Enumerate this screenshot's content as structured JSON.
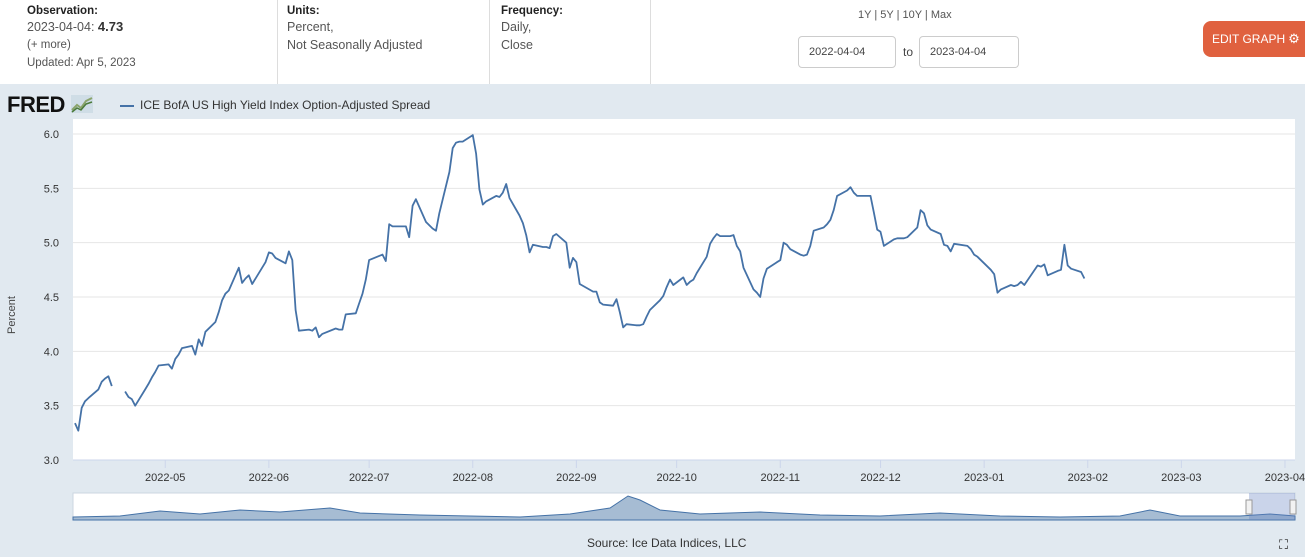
{
  "header": {
    "observation_label": "Observation:",
    "observation_date": "2023-04-04:",
    "observation_value": "4.73",
    "more_label": "(+ more)",
    "updated": "Updated: Apr 5, 2023",
    "units_label": "Units:",
    "units_line1": "Percent,",
    "units_line2": "Not Seasonally Adjusted",
    "frequency_label": "Frequency:",
    "frequency_line1": "Daily,",
    "frequency_line2": "Close",
    "ranges": [
      "1Y",
      "5Y",
      "10Y",
      "Max"
    ],
    "range_sep": " | ",
    "date_from": "2022-04-04",
    "date_to": "2023-04-04",
    "to_label": "to",
    "edit_button": "EDIT GRAPH",
    "gear_icon": "gear-icon"
  },
  "logo": {
    "text": "FRED",
    "icon": "chart-trend-icon"
  },
  "footer": {
    "source": "Source: Ice Data Indices, LLC",
    "fullscreen_icon": "fullscreen-icon"
  },
  "colors": {
    "line": "#4572a7",
    "accent": "#e0613f",
    "plot_bg": "#ffffff",
    "page_bg": "#e1e9f0"
  },
  "chart_data": {
    "type": "line",
    "ylabel": "Percent",
    "ylim": [
      3.0,
      6.0
    ],
    "yticks": [
      "3.0",
      "3.5",
      "4.0",
      "4.5",
      "5.0",
      "5.5",
      "6.0"
    ],
    "xlim": [
      "2022-04-04",
      "2023-04-04"
    ],
    "xticks": [
      {
        "date": "2022-05-01",
        "label": "2022-05"
      },
      {
        "date": "2022-06-01",
        "label": "2022-06"
      },
      {
        "date": "2022-07-01",
        "label": "2022-07"
      },
      {
        "date": "2022-08-01",
        "label": "2022-08"
      },
      {
        "date": "2022-09-01",
        "label": "2022-09"
      },
      {
        "date": "2022-10-01",
        "label": "2022-10"
      },
      {
        "date": "2022-11-01",
        "label": "2022-11"
      },
      {
        "date": "2022-12-01",
        "label": "2022-12"
      },
      {
        "date": "2023-01-01",
        "label": "2023-01"
      },
      {
        "date": "2023-02-01",
        "label": "2023-02"
      },
      {
        "date": "2023-03-01",
        "label": "2023-03"
      },
      {
        "date": "2023-04-01",
        "label": "2023-04"
      }
    ],
    "grid": true,
    "legend": "top-left",
    "series": [
      {
        "name": "ICE BofA US High Yield Index Option-Adjusted Spread",
        "points": [
          [
            "2022-04-04",
            3.34
          ],
          [
            "2022-04-05",
            3.27
          ],
          [
            "2022-04-06",
            3.48
          ],
          [
            "2022-04-07",
            3.54
          ],
          [
            "2022-04-08",
            3.57
          ],
          [
            "2022-04-11",
            3.65
          ],
          [
            "2022-04-12",
            3.72
          ],
          [
            "2022-04-13",
            3.75
          ],
          [
            "2022-04-14",
            3.77
          ],
          [
            "2022-04-15",
            3.68
          ],
          [
            "2022-04-18",
            null
          ],
          [
            "2022-04-19",
            3.63
          ],
          [
            "2022-04-20",
            3.58
          ],
          [
            "2022-04-21",
            3.56
          ],
          [
            "2022-04-22",
            3.5
          ],
          [
            "2022-04-25",
            3.65
          ],
          [
            "2022-04-26",
            3.7
          ],
          [
            "2022-04-27",
            3.76
          ],
          [
            "2022-04-28",
            3.81
          ],
          [
            "2022-04-29",
            3.87
          ],
          [
            "2022-05-02",
            3.88
          ],
          [
            "2022-05-03",
            3.84
          ],
          [
            "2022-05-04",
            3.93
          ],
          [
            "2022-05-05",
            3.97
          ],
          [
            "2022-05-06",
            4.03
          ],
          [
            "2022-05-09",
            4.05
          ],
          [
            "2022-05-10",
            3.97
          ],
          [
            "2022-05-11",
            4.11
          ],
          [
            "2022-05-12",
            4.05
          ],
          [
            "2022-05-13",
            4.18
          ],
          [
            "2022-05-16",
            4.27
          ],
          [
            "2022-05-17",
            4.36
          ],
          [
            "2022-05-18",
            4.47
          ],
          [
            "2022-05-19",
            4.53
          ],
          [
            "2022-05-20",
            4.56
          ],
          [
            "2022-05-23",
            4.77
          ],
          [
            "2022-05-24",
            4.63
          ],
          [
            "2022-05-25",
            4.67
          ],
          [
            "2022-05-26",
            4.7
          ],
          [
            "2022-05-27",
            4.62
          ],
          [
            "2022-05-31",
            4.82
          ],
          [
            "2022-06-01",
            4.91
          ],
          [
            "2022-06-02",
            4.9
          ],
          [
            "2022-06-03",
            4.86
          ],
          [
            "2022-06-06",
            4.81
          ],
          [
            "2022-06-07",
            4.92
          ],
          [
            "2022-06-08",
            4.84
          ],
          [
            "2022-06-09",
            4.38
          ],
          [
            "2022-06-10",
            4.19
          ],
          [
            "2022-06-13",
            4.2
          ],
          [
            "2022-06-14",
            4.19
          ],
          [
            "2022-06-15",
            4.22
          ],
          [
            "2022-06-16",
            4.13
          ],
          [
            "2022-06-17",
            4.16
          ],
          [
            "2022-06-21",
            4.21
          ],
          [
            "2022-06-22",
            4.2
          ],
          [
            "2022-06-23",
            4.2
          ],
          [
            "2022-06-24",
            4.34
          ],
          [
            "2022-06-27",
            4.35
          ],
          [
            "2022-06-28",
            4.44
          ],
          [
            "2022-06-29",
            4.53
          ],
          [
            "2022-06-30",
            4.66
          ],
          [
            "2022-07-01",
            4.84
          ],
          [
            "2022-07-05",
            4.89
          ],
          [
            "2022-07-06",
            4.83
          ],
          [
            "2022-07-07",
            5.17
          ],
          [
            "2022-07-08",
            5.15
          ],
          [
            "2022-07-11",
            5.15
          ],
          [
            "2022-07-12",
            5.15
          ],
          [
            "2022-07-13",
            5.05
          ],
          [
            "2022-07-14",
            5.34
          ],
          [
            "2022-07-15",
            5.4
          ],
          [
            "2022-07-18",
            5.19
          ],
          [
            "2022-07-19",
            5.16
          ],
          [
            "2022-07-20",
            5.13
          ],
          [
            "2022-07-21",
            5.11
          ],
          [
            "2022-07-22",
            5.27
          ],
          [
            "2022-07-25",
            5.65
          ],
          [
            "2022-07-26",
            5.87
          ],
          [
            "2022-07-27",
            5.92
          ],
          [
            "2022-07-28",
            5.93
          ],
          [
            "2022-07-29",
            5.93
          ],
          [
            "2022-08-01",
            5.99
          ],
          [
            "2022-08-02",
            5.82
          ],
          [
            "2022-08-03",
            5.49
          ],
          [
            "2022-08-04",
            5.35
          ],
          [
            "2022-08-05",
            5.38
          ],
          [
            "2022-08-08",
            5.43
          ],
          [
            "2022-08-09",
            5.42
          ],
          [
            "2022-08-10",
            5.46
          ],
          [
            "2022-08-11",
            5.54
          ],
          [
            "2022-08-12",
            5.41
          ],
          [
            "2022-08-15",
            5.25
          ],
          [
            "2022-08-16",
            5.18
          ],
          [
            "2022-08-17",
            5.07
          ],
          [
            "2022-08-18",
            4.91
          ],
          [
            "2022-08-19",
            4.98
          ],
          [
            "2022-08-22",
            4.96
          ],
          [
            "2022-08-23",
            4.96
          ],
          [
            "2022-08-24",
            4.95
          ],
          [
            "2022-08-25",
            5.06
          ],
          [
            "2022-08-26",
            5.08
          ],
          [
            "2022-08-29",
            5.0
          ],
          [
            "2022-08-30",
            4.77
          ],
          [
            "2022-08-31",
            4.86
          ],
          [
            "2022-09-01",
            4.82
          ],
          [
            "2022-09-02",
            4.62
          ],
          [
            "2022-09-06",
            4.55
          ],
          [
            "2022-09-07",
            4.55
          ],
          [
            "2022-09-08",
            4.45
          ],
          [
            "2022-09-09",
            4.43
          ],
          [
            "2022-09-12",
            4.42
          ],
          [
            "2022-09-13",
            4.48
          ],
          [
            "2022-09-14",
            4.36
          ],
          [
            "2022-09-15",
            4.22
          ],
          [
            "2022-09-16",
            4.25
          ],
          [
            "2022-09-19",
            4.24
          ],
          [
            "2022-09-20",
            4.24
          ],
          [
            "2022-09-21",
            4.25
          ],
          [
            "2022-09-22",
            4.32
          ],
          [
            "2022-09-23",
            4.38
          ],
          [
            "2022-09-26",
            4.47
          ],
          [
            "2022-09-27",
            4.51
          ],
          [
            "2022-09-28",
            4.59
          ],
          [
            "2022-09-29",
            4.66
          ],
          [
            "2022-09-30",
            4.61
          ],
          [
            "2022-10-03",
            4.68
          ],
          [
            "2022-10-04",
            4.61
          ],
          [
            "2022-10-05",
            4.64
          ],
          [
            "2022-10-06",
            4.66
          ],
          [
            "2022-10-07",
            4.72
          ],
          [
            "2022-10-10",
            4.87
          ],
          [
            "2022-10-11",
            4.99
          ],
          [
            "2022-10-12",
            5.04
          ],
          [
            "2022-10-13",
            5.08
          ],
          [
            "2022-10-14",
            5.06
          ],
          [
            "2022-10-17",
            5.06
          ],
          [
            "2022-10-18",
            5.07
          ],
          [
            "2022-10-19",
            4.97
          ],
          [
            "2022-10-20",
            4.92
          ],
          [
            "2022-10-21",
            4.77
          ],
          [
            "2022-10-24",
            4.57
          ],
          [
            "2022-10-25",
            4.54
          ],
          [
            "2022-10-26",
            4.5
          ],
          [
            "2022-10-27",
            4.67
          ],
          [
            "2022-10-28",
            4.76
          ],
          [
            "2022-10-31",
            4.82
          ],
          [
            "2022-11-01",
            4.84
          ],
          [
            "2022-11-02",
            5.0
          ],
          [
            "2022-11-03",
            4.98
          ],
          [
            "2022-11-04",
            4.94
          ],
          [
            "2022-11-07",
            4.89
          ],
          [
            "2022-11-08",
            4.88
          ],
          [
            "2022-11-09",
            4.89
          ],
          [
            "2022-11-10",
            4.97
          ],
          [
            "2022-11-11",
            5.11
          ],
          [
            "2022-11-14",
            5.14
          ],
          [
            "2022-11-15",
            5.17
          ],
          [
            "2022-11-16",
            5.21
          ],
          [
            "2022-11-17",
            5.3
          ],
          [
            "2022-11-18",
            5.43
          ],
          [
            "2022-11-21",
            5.48
          ],
          [
            "2022-11-22",
            5.51
          ],
          [
            "2022-11-23",
            5.46
          ],
          [
            "2022-11-24",
            5.43
          ],
          [
            "2022-11-25",
            5.43
          ],
          [
            "2022-11-28",
            5.43
          ],
          [
            "2022-11-29",
            5.28
          ],
          [
            "2022-11-30",
            5.12
          ],
          [
            "2022-12-01",
            5.1
          ],
          [
            "2022-12-02",
            4.97
          ],
          [
            "2022-12-05",
            5.03
          ],
          [
            "2022-12-06",
            5.04
          ],
          [
            "2022-12-07",
            5.04
          ],
          [
            "2022-12-08",
            5.04
          ],
          [
            "2022-12-09",
            5.05
          ],
          [
            "2022-12-12",
            5.14
          ],
          [
            "2022-12-13",
            5.3
          ],
          [
            "2022-12-14",
            5.27
          ],
          [
            "2022-12-15",
            5.16
          ],
          [
            "2022-12-16",
            5.12
          ],
          [
            "2022-12-19",
            5.08
          ],
          [
            "2022-12-20",
            4.98
          ],
          [
            "2022-12-21",
            4.97
          ],
          [
            "2022-12-22",
            4.92
          ],
          [
            "2022-12-23",
            4.99
          ],
          [
            "2022-12-27",
            4.97
          ],
          [
            "2022-12-28",
            4.94
          ],
          [
            "2022-12-29",
            4.89
          ],
          [
            "2022-12-30",
            4.87
          ],
          [
            "2023-01-03",
            4.75
          ],
          [
            "2023-01-04",
            4.71
          ],
          [
            "2023-01-05",
            4.54
          ],
          [
            "2023-01-06",
            4.57
          ],
          [
            "2023-01-09",
            4.61
          ],
          [
            "2023-01-10",
            4.6
          ],
          [
            "2023-01-11",
            4.61
          ],
          [
            "2023-01-12",
            4.64
          ],
          [
            "2023-01-13",
            4.61
          ],
          [
            "2023-01-17",
            4.79
          ],
          [
            "2023-01-18",
            4.78
          ],
          [
            "2023-01-19",
            4.8
          ],
          [
            "2023-01-20",
            4.7
          ],
          [
            "2023-01-23",
            4.74
          ],
          [
            "2023-01-24",
            4.75
          ],
          [
            "2023-01-25",
            4.98
          ],
          [
            "2023-01-26",
            4.79
          ],
          [
            "2023-01-27",
            4.76
          ],
          [
            "2023-01-30",
            4.73
          ],
          [
            "2023-01-31",
            4.67
          ]
        ]
      }
    ]
  }
}
